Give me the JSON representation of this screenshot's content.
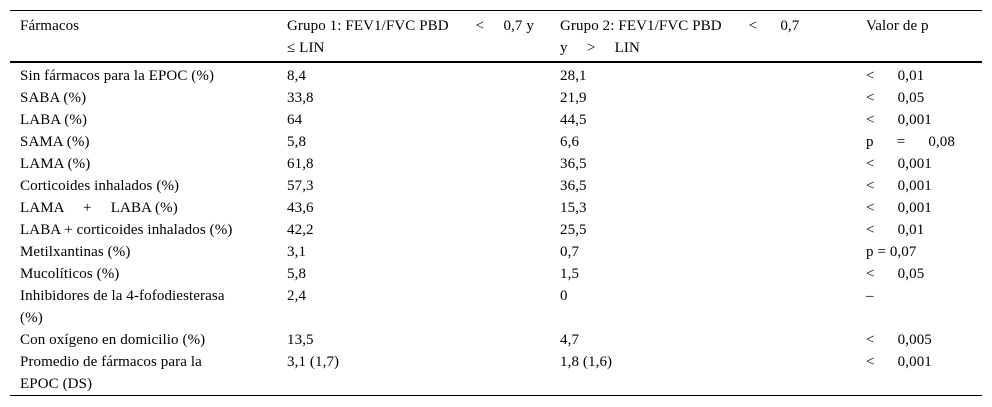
{
  "table": {
    "colors": {
      "text": "#000000",
      "border": "#000000",
      "background": "#ffffff"
    },
    "columns": [
      {
        "label": "Fármacos"
      },
      {
        "label": "Grupo 1: FEV1/FVC PBD       <     0,7 y\n≤ LIN"
      },
      {
        "label": "Grupo 2: FEV1/FVC PBD       <      0,7\ny     >     LIN"
      },
      {
        "label": "Valor de p"
      }
    ],
    "rows": [
      {
        "cells": [
          "Sin fármacos para la EPOC (%)",
          "8,4",
          "28,1",
          "<      0,01"
        ]
      },
      {
        "cells": [
          "SABA (%)",
          "33,8",
          "21,9",
          "<      0,05"
        ]
      },
      {
        "cells": [
          "LABA (%)",
          "64",
          "44,5",
          "<      0,001"
        ]
      },
      {
        "cells": [
          "SAMA (%)",
          "5,8",
          "6,6",
          "p      =      0,08"
        ]
      },
      {
        "cells": [
          "LAMA (%)",
          "61,8",
          "36,5",
          "<      0,001"
        ]
      },
      {
        "cells": [
          "Corticoides inhalados (%)",
          "57,3",
          "36,5",
          "<      0,001"
        ]
      },
      {
        "cells": [
          "LAMA     +     LABA (%)",
          "43,6",
          "15,3",
          "<      0,001"
        ]
      },
      {
        "cells": [
          "LABA + corticoides inhalados (%)",
          "42,2",
          "25,5",
          "<      0,01"
        ]
      },
      {
        "cells": [
          "Metilxantinas (%)",
          "3,1",
          "0,7",
          "p = 0,07"
        ]
      },
      {
        "cells": [
          "Mucolíticos (%)",
          "5,8",
          "1,5",
          "<      0,05"
        ]
      },
      {
        "cells": [
          "Inhibidores de la 4-fofodiesterasa\n(%)",
          "2,4",
          "0",
          "–"
        ]
      },
      {
        "cells": [
          "Con oxígeno en domicilio (%)",
          "13,5",
          "4,7",
          "<      0,005"
        ]
      },
      {
        "cells": [
          "Promedio de fármacos para la\nEPOC (DS)",
          "3,1 (1,7)",
          "1,8 (1,6)",
          "<      0,001"
        ]
      }
    ]
  }
}
